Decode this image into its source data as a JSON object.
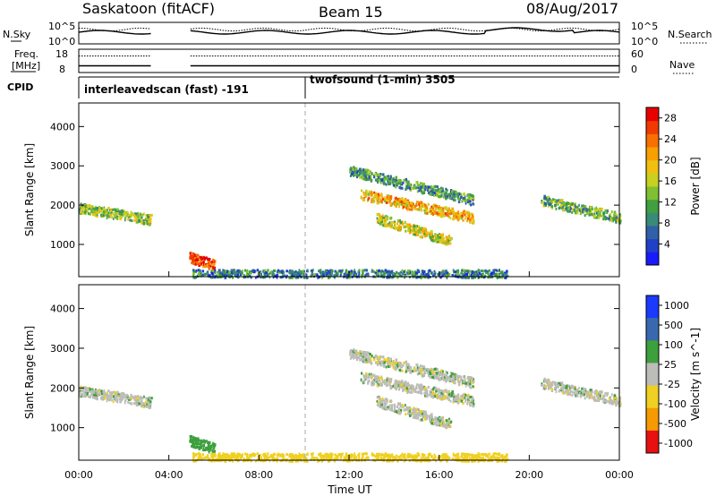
{
  "header": {
    "station": "Saskatoon (fitACF)",
    "beam": "Beam 15",
    "date": "08/Aug/2017"
  },
  "aux": {
    "nsky_label": "N.Sky",
    "nsearch_label": "N.Search",
    "freq_label_1": "Freq.",
    "freq_label_2": "[MHz]",
    "nave_label": "Nave",
    "cpid_label": "CPID",
    "noise_ticks": [
      "10^5",
      "10^0"
    ],
    "freq_ticks": [
      "18",
      "8"
    ],
    "nave_ticks": [
      "60",
      "0"
    ],
    "cpid_segments": [
      {
        "start": 0.0,
        "end": 10.0,
        "label": "interleavedscan (fast) -191"
      },
      {
        "start": 10.0,
        "end": 24.0,
        "label": "twofsound (1-min) 3505"
      }
    ]
  },
  "axes": {
    "x_label": "Time UT",
    "y_label": "Slant Range [km]",
    "x_ticks": [
      "00:00",
      "04:00",
      "08:00",
      "12:00",
      "16:00",
      "20:00",
      "00:00"
    ],
    "y_ticks": [
      "1000",
      "2000",
      "3000",
      "4000"
    ]
  },
  "colorbars": {
    "power": {
      "label": "Power [dB]",
      "ticks": [
        "4",
        "8",
        "12",
        "16",
        "20",
        "24",
        "28"
      ]
    },
    "velocity": {
      "label": "Velocity [m s^-1]",
      "ticks": [
        "1000",
        "500",
        "100",
        "25",
        "-25",
        "-100",
        "-500",
        "-1000"
      ]
    }
  },
  "chart_data": {
    "type": "heatmap",
    "title": "Saskatoon (fitACF)",
    "x_unit": "hours UT",
    "xlim": [
      0,
      24
    ],
    "ylim": [
      180,
      4600
    ],
    "xlabel": "Time UT",
    "ylabel": "Slant Range [km]",
    "data_gaps_hours": [
      [
        3.2,
        4.9
      ]
    ],
    "scatter_bands": [
      {
        "t_start": 0.0,
        "t_end": 3.2,
        "r_start": 1950,
        "r_end": 1650,
        "power": 14,
        "velocity": 0
      },
      {
        "t_start": 12.5,
        "t_end": 17.5,
        "r_start": 2300,
        "r_end": 1700,
        "power": 20,
        "velocity": 0
      },
      {
        "t_start": 13.2,
        "t_end": 16.5,
        "r_start": 1700,
        "r_end": 1100,
        "power": 16,
        "velocity": 0
      },
      {
        "t_start": 12.0,
        "t_end": 17.5,
        "r_start": 2900,
        "r_end": 2150,
        "power": 10,
        "velocity": 0
      },
      {
        "t_start": 20.5,
        "t_end": 24.0,
        "r_start": 2150,
        "r_end": 1700,
        "power": 12,
        "velocity": 0
      },
      {
        "t_start": 4.9,
        "t_end": 6.0,
        "r_start": 700,
        "r_end": 500,
        "power": 26,
        "velocity": 60
      },
      {
        "t_start": 5.0,
        "t_end": 19.0,
        "r_start": 250,
        "r_end": 250,
        "power": 8,
        "velocity": -60
      }
    ],
    "power_colorbar": {
      "min": 0,
      "max": 30,
      "ticks": [
        4,
        8,
        12,
        16,
        20,
        24,
        28
      ],
      "label": "Power [dB]"
    },
    "velocity_colorbar": {
      "ticks": [
        1000,
        500,
        100,
        25,
        -25,
        -100,
        -500,
        -1000
      ],
      "label": "Velocity [m s^-1]"
    }
  }
}
